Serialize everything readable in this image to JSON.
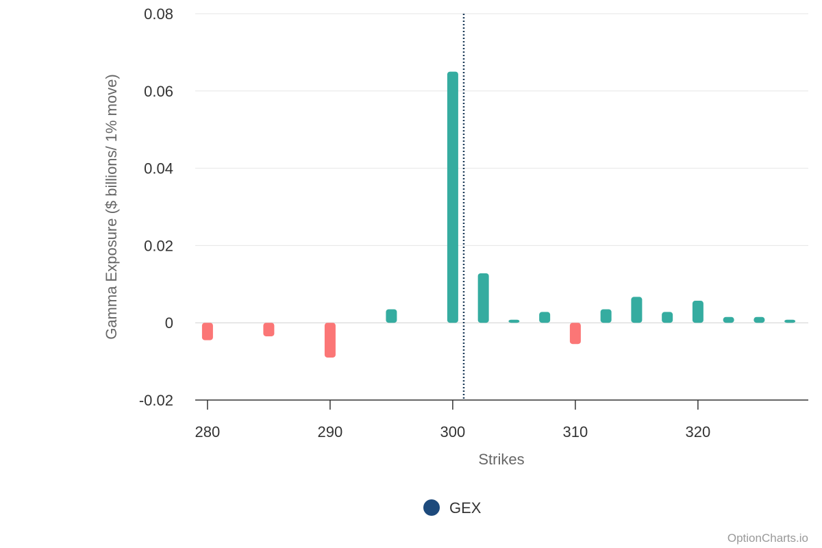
{
  "chart_data": {
    "type": "bar",
    "xlabel": "Strikes",
    "ylabel": "Gamma Exposure ($ billions/ 1% move)",
    "xlim": [
      279,
      329
    ],
    "ylim": [
      -0.02,
      0.08
    ],
    "x_ticks": [
      280,
      290,
      300,
      310,
      320
    ],
    "y_ticks": [
      -0.02,
      0,
      0.02,
      0.04,
      0.06,
      0.08
    ],
    "y_tick_labels": [
      "-0.02",
      "0",
      "0.02",
      "0.04",
      "0.06",
      "0.08"
    ],
    "grid": true,
    "legend_position": "bottom-center",
    "series": [
      {
        "name": "GEX",
        "x": [
          280,
          285,
          290,
          295,
          300,
          302.5,
          305,
          307.5,
          310,
          312.5,
          315,
          317.5,
          320,
          322.5,
          325,
          327.5
        ],
        "values": [
          -0.0045,
          -0.0035,
          -0.009,
          0.0035,
          0.065,
          0.0128,
          0.0008,
          0.0028,
          -0.0055,
          0.0035,
          0.0067,
          0.0028,
          0.0057,
          0.0015,
          0.0015,
          0.0008
        ]
      }
    ],
    "reference_line": {
      "x": 300.9,
      "style": "dotted"
    },
    "colors": {
      "positive": "#35aca0",
      "negative": "#fb7676",
      "legend_marker": "#1d4a7c",
      "reference_line": "#1d3c5a",
      "grid": "#e6e6e6",
      "axis": "#333333"
    }
  },
  "legend": {
    "label": "GEX"
  },
  "credit": "OptionCharts.io"
}
